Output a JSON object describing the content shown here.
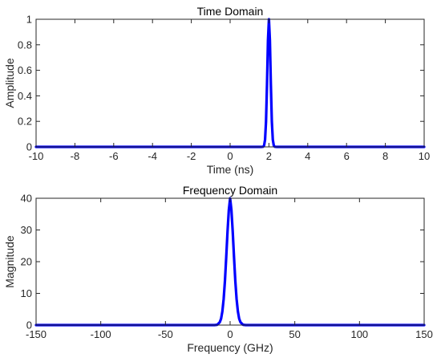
{
  "colors": {
    "series": "#0000ff",
    "axis": "#262626"
  },
  "chart_data": [
    {
      "type": "line",
      "title": "Time Domain",
      "xlabel": "Time (ns)",
      "ylabel": "Amplitude",
      "xlim": [
        -10,
        10
      ],
      "ylim": [
        0,
        1
      ],
      "xticks": [
        -10,
        -8,
        -6,
        -4,
        -2,
        0,
        2,
        4,
        6,
        8,
        10
      ],
      "yticks": [
        0,
        0.2,
        0.4,
        0.6,
        0.8,
        1
      ],
      "grid": false,
      "series": [
        {
          "color": "#0000ff",
          "x": [
            -10,
            1.6,
            1.7,
            1.75,
            1.8,
            1.85,
            1.9,
            1.95,
            2.0,
            2.05,
            2.1,
            2.15,
            2.2,
            2.25,
            2.3,
            2.4,
            10
          ],
          "y": [
            0,
            0,
            0.001,
            0.011,
            0.056,
            0.198,
            0.487,
            0.835,
            1.0,
            0.835,
            0.487,
            0.198,
            0.056,
            0.011,
            0.001,
            0,
            0
          ]
        }
      ]
    },
    {
      "type": "line",
      "title": "Frequency Domain",
      "xlabel": "Frequency (GHz)",
      "ylabel": "Magnitude",
      "xlim": [
        -150,
        150
      ],
      "ylim": [
        0,
        40
      ],
      "xticks": [
        -150,
        -100,
        -50,
        0,
        50,
        100,
        150
      ],
      "yticks": [
        0,
        10,
        20,
        30,
        40
      ],
      "grid": false,
      "series": [
        {
          "color": "#0000ff",
          "x": [
            -150,
            -12,
            -10,
            -8,
            -7,
            -6,
            -5,
            -4,
            -3,
            -2,
            -1,
            0,
            1,
            2,
            3,
            4,
            5,
            6,
            7,
            8,
            10,
            12,
            150
          ],
          "y": [
            0,
            0,
            0.1,
            0.9,
            2.0,
            4.3,
            8.2,
            14.0,
            21.5,
            29.5,
            36.3,
            40,
            36.3,
            29.5,
            21.5,
            14.0,
            8.2,
            4.3,
            2.0,
            0.9,
            0.1,
            0,
            0
          ]
        }
      ]
    }
  ]
}
